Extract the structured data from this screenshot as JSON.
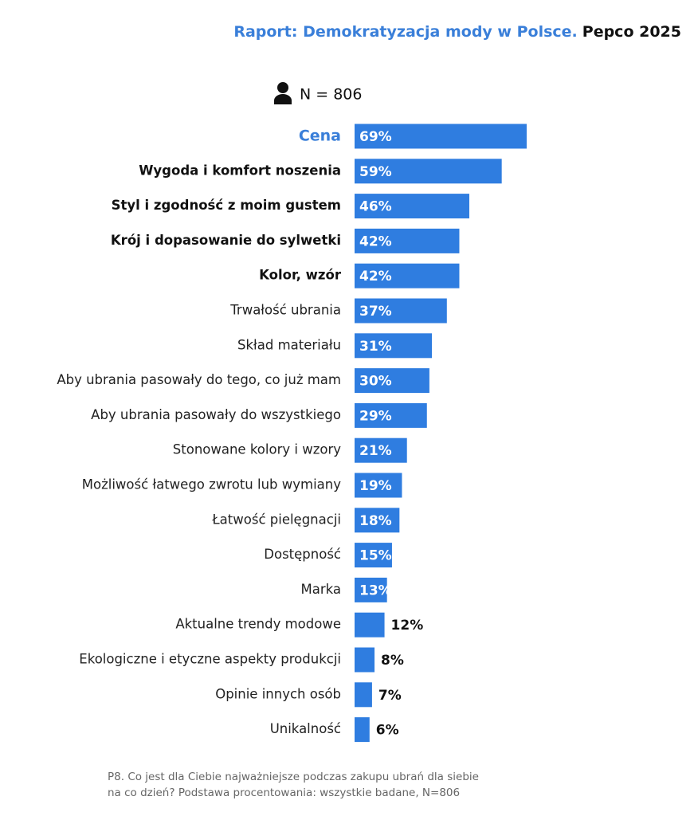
{
  "chart_data": {
    "type": "bar",
    "orientation": "horizontal",
    "title": "Raport: Demokratyzacja mody w Polsce.",
    "subtitle": "Pepco 2025",
    "sample_size": "N = 806",
    "categories": [
      "Cena",
      "Wygoda i komfort noszenia",
      "Styl i zgodność z moim gustem",
      "Krój i dopasowanie do sylwetki",
      "Kolor, wzór",
      "Trwałość ubrania",
      "Skład materiału",
      "Aby ubrania pasowały do tego, co już mam",
      "Aby ubrania pasowały do wszystkiego",
      "Stonowane kolory i wzory",
      "Możliwość łatwego zwrotu lub wymiany",
      "Łatwość pielęgnacji",
      "Dostępność",
      "Marka",
      "Aktualne trendy modowe",
      "Ekologiczne i etyczne aspekty produkcji",
      "Opinie innych osób",
      "Unikalność"
    ],
    "values": [
      69,
      59,
      46,
      42,
      42,
      37,
      31,
      30,
      29,
      21,
      19,
      18,
      15,
      13,
      12,
      8,
      7,
      6
    ],
    "value_labels": [
      "69%",
      "59%",
      "46%",
      "42%",
      "42%",
      "37%",
      "31%",
      "30%",
      "29%",
      "21%",
      "19%",
      "18%",
      "15%",
      "13%",
      "12%",
      "8%",
      "7%",
      "6%"
    ],
    "color": "#2f7de0",
    "footnote": [
      "P8. Co jest dla Ciebie najważniejsze podczas zakupu ubrań dla siebie",
      "na co dzień? Podstawa procentowania: wszystkie badane, N=806"
    ]
  }
}
